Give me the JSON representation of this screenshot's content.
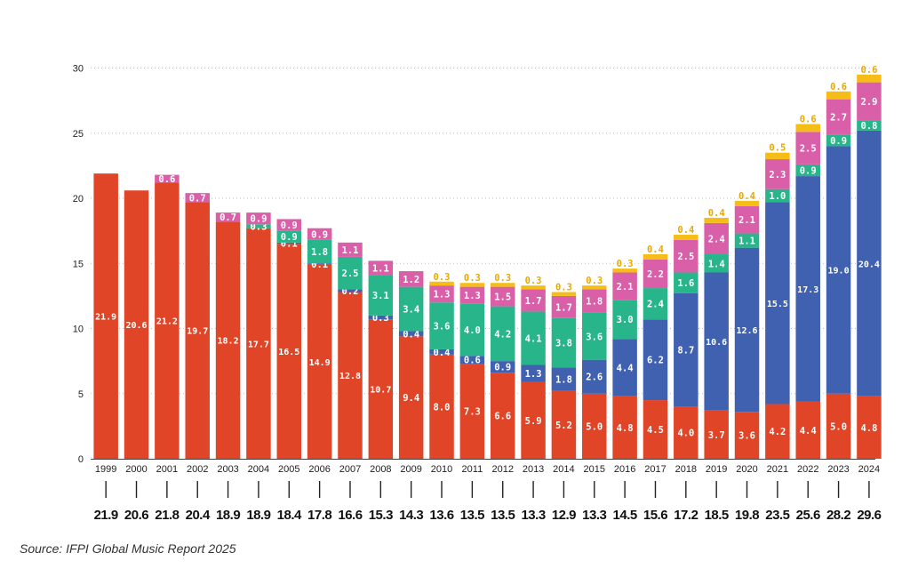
{
  "chart_data": {
    "type": "bar",
    "stacked": true,
    "categories": [
      "1999",
      "2000",
      "2001",
      "2002",
      "2003",
      "2004",
      "2005",
      "2006",
      "2007",
      "2008",
      "2009",
      "2010",
      "2011",
      "2012",
      "2013",
      "2014",
      "2015",
      "2016",
      "2017",
      "2018",
      "2019",
      "2020",
      "2021",
      "2022",
      "2023",
      "2024"
    ],
    "series": [
      {
        "color": "#e04527",
        "values": [
          21.9,
          20.6,
          21.2,
          19.7,
          18.2,
          17.7,
          16.5,
          14.9,
          12.8,
          10.7,
          9.4,
          8.0,
          7.3,
          6.6,
          5.9,
          5.2,
          5.0,
          4.8,
          4.5,
          4.0,
          3.7,
          3.6,
          4.2,
          4.4,
          5.0,
          4.8
        ],
        "labels": [
          "21.9",
          "20.6",
          "21.2",
          "19.7",
          "18.2",
          "17.7",
          "16.5",
          "14.9",
          "12.8",
          "10.7",
          "9.4",
          "8.0",
          "7.3",
          "6.6",
          "5.9",
          "5.2",
          "5.0",
          "4.8",
          "4.5",
          "4.0",
          "3.7",
          "3.6",
          "4.2",
          "4.4",
          "5.0",
          "4.8"
        ]
      },
      {
        "color": "#4060b0",
        "values": [
          0,
          0,
          0,
          0,
          0,
          0,
          0.1,
          0.1,
          0.2,
          0.3,
          0.4,
          0.4,
          0.6,
          0.9,
          1.3,
          1.8,
          2.6,
          4.4,
          6.2,
          8.7,
          10.6,
          12.6,
          15.5,
          17.3,
          19.0,
          20.4
        ],
        "labels": [
          "",
          "",
          "",
          "",
          "",
          "",
          "0.1",
          "0.1",
          "0.2",
          "0.3",
          "0.4",
          "0.4",
          "0.6",
          "0.9",
          "1.3",
          "1.8",
          "2.6",
          "4.4",
          "6.2",
          "8.7",
          "10.6",
          "12.6",
          "15.5",
          "17.3",
          "19.0",
          "20.4"
        ]
      },
      {
        "color": "#28b58a",
        "values": [
          0,
          0,
          0,
          0,
          0,
          0.3,
          0.9,
          1.8,
          2.5,
          3.1,
          3.4,
          3.6,
          4.0,
          4.2,
          4.1,
          3.8,
          3.6,
          3.0,
          2.4,
          1.6,
          1.4,
          1.1,
          1.0,
          0.9,
          0.9,
          0.8
        ],
        "labels": [
          "",
          "",
          "",
          "",
          "",
          "0.3",
          "0.9",
          "1.8",
          "2.5",
          "3.1",
          "3.4",
          "3.6",
          "4.0",
          "4.2",
          "4.1",
          "3.8",
          "3.6",
          "3.0",
          "2.4",
          "1.6",
          "1.4",
          "1.1",
          "1.0",
          "0.9",
          "0.9",
          "0.8"
        ]
      },
      {
        "color": "#d95fa8",
        "values": [
          0,
          0,
          0.6,
          0.7,
          0.7,
          0.9,
          0.9,
          0.9,
          1.1,
          1.1,
          1.2,
          1.3,
          1.3,
          1.5,
          1.7,
          1.7,
          1.8,
          2.1,
          2.2,
          2.5,
          2.4,
          2.1,
          2.3,
          2.5,
          2.7,
          2.9
        ],
        "labels": [
          "",
          "",
          "0.6",
          "0.7",
          "0.7",
          "0.9",
          "0.9",
          "0.9",
          "1.1",
          "1.1",
          "1.2",
          "1.3",
          "1.3",
          "1.5",
          "1.7",
          "1.7",
          "1.8",
          "2.1",
          "2.2",
          "2.5",
          "2.4",
          "2.1",
          "2.3",
          "2.5",
          "2.7",
          "2.9"
        ]
      },
      {
        "color": "#f6bd16",
        "values": [
          0,
          0,
          0,
          0,
          0,
          0,
          0,
          0,
          0,
          0,
          0,
          0.3,
          0.3,
          0.3,
          0.3,
          0.3,
          0.3,
          0.3,
          0.4,
          0.4,
          0.4,
          0.4,
          0.5,
          0.6,
          0.6,
          0.6
        ],
        "labels": [
          "",
          "",
          "",
          "",
          "",
          "",
          "",
          "",
          "",
          "",
          "",
          "0.3",
          "0.3",
          "0.3",
          "0.3",
          "0.3",
          "0.3",
          "0.3",
          "0.4",
          "0.4",
          "0.4",
          "0.4",
          "0.5",
          "0.6",
          "0.6",
          "0.6"
        ]
      }
    ],
    "totals": [
      "21.9",
      "20.6",
      "21.8",
      "20.4",
      "18.9",
      "18.9",
      "18.4",
      "17.8",
      "16.6",
      "15.3",
      "14.3",
      "13.6",
      "13.5",
      "13.5",
      "13.3",
      "12.9",
      "13.3",
      "14.5",
      "15.6",
      "17.2",
      "18.5",
      "19.8",
      "23.5",
      "25.6",
      "28.2",
      "29.6"
    ],
    "yticks": [
      "0",
      "5",
      "10",
      "15",
      "20",
      "25",
      "30"
    ],
    "ylim": [
      0,
      30
    ],
    "grid": true
  },
  "source": "Source: IFPI Global Music Report 2025"
}
